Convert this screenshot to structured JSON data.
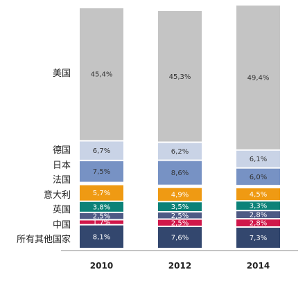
{
  "chart_data": {
    "type": "bar",
    "stacked": true,
    "percent_stacked": true,
    "categories": [
      "2010",
      "2012",
      "2014"
    ],
    "ylim": [
      0,
      100
    ],
    "grid": false,
    "legend": "left",
    "series": [
      {
        "name": "所有其他国家",
        "color": "#33476e",
        "values": [
          8.1,
          7.6,
          7.3
        ],
        "labels": [
          "8,1%",
          "7,6%",
          "7,3%"
        ]
      },
      {
        "name": "中国",
        "color": "#d0174a",
        "values": [
          1.7,
          2.5,
          2.8
        ],
        "labels": [
          "1,7%",
          "2,5%",
          "2,8%"
        ]
      },
      {
        "name": "",
        "color": "#4e5a85",
        "values": [
          2.5,
          2.5,
          2.8
        ],
        "labels": [
          "2,5%",
          "2,5%",
          "2,8%"
        ]
      },
      {
        "name": "英国",
        "color": "#0c8278",
        "values": [
          3.8,
          3.5,
          3.3
        ],
        "labels": [
          "3,8%",
          "3,5%",
          "3,3%"
        ]
      },
      {
        "name": "意大利",
        "color": "#ef9a13",
        "values": [
          5.7,
          4.9,
          4.5
        ],
        "labels": [
          "5,7%",
          "4,9%",
          "4,5%"
        ]
      },
      {
        "name": "法国",
        "color": "#ffffff",
        "values": [
          0.7,
          0.7,
          0.7
        ],
        "labels": [
          "",
          "",
          ""
        ]
      },
      {
        "name": "日本",
        "color": "#7792c4",
        "values": [
          7.5,
          8.6,
          6.0
        ],
        "labels": [
          "7,5%",
          "8,6%",
          "6,0%"
        ]
      },
      {
        "name": "德国",
        "color": "#c9d3e6",
        "values": [
          6.7,
          6.2,
          6.1
        ],
        "labels": [
          "6,7%",
          "6,2%",
          "6,1%"
        ]
      },
      {
        "name": "美国",
        "color": "#c4c4c4",
        "values": [
          45.4,
          45.3,
          49.4
        ],
        "labels": [
          "45,4%",
          "45,3%",
          "49,4%"
        ]
      }
    ]
  }
}
